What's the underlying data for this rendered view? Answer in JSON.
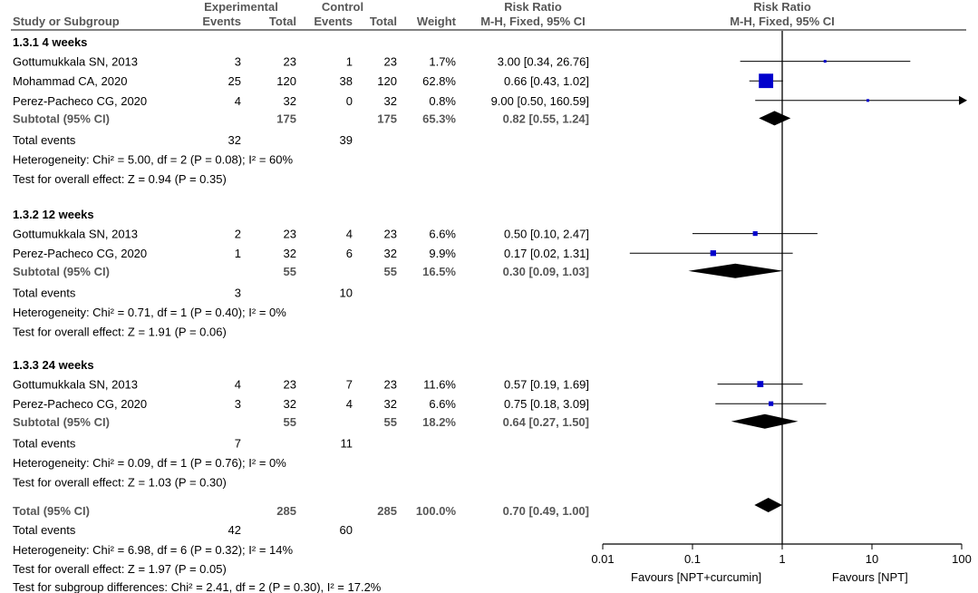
{
  "header": {
    "study_col": "Study or Subgroup",
    "exp_group": "Experimental",
    "ctrl_group": "Control",
    "events": "Events",
    "total": "Total",
    "weight": "Weight",
    "rr_title": "Risk Ratio",
    "rr_method": "M-H, Fixed, 95% CI",
    "plot_title": "Risk Ratio",
    "plot_method": "M-H, Fixed, 95% CI"
  },
  "axis": {
    "ticks": [
      "0.01",
      "0.1",
      "1",
      "10",
      "100"
    ],
    "left_label": "Favours [NPT+curcumin]",
    "right_label": "Favours [NPT]"
  },
  "colors": {
    "marker": "#0000cc",
    "diamond": "#000000",
    "subtotal_text": "#575757"
  },
  "chart_data": {
    "type": "forest",
    "scale": "log",
    "xlim": [
      0.01,
      100
    ],
    "reference_line": 1,
    "groups": [
      {
        "title": "1.3.1 4 weeks",
        "studies": [
          {
            "name": "Gottumukkala SN, 2013",
            "exp_events": "3",
            "exp_total": "23",
            "ctrl_events": "1",
            "ctrl_total": "23",
            "weight": "1.7%",
            "ci_text": "3.00 [0.34, 26.76]",
            "rr": 3.0,
            "lo": 0.34,
            "hi": 26.76
          },
          {
            "name": "Mohammad CA, 2020",
            "exp_events": "25",
            "exp_total": "120",
            "ctrl_events": "38",
            "ctrl_total": "120",
            "weight": "62.8%",
            "ci_text": "0.66 [0.43, 1.02]",
            "rr": 0.66,
            "lo": 0.43,
            "hi": 1.02
          },
          {
            "name": "Perez-Pacheco CG, 2020",
            "exp_events": "4",
            "exp_total": "32",
            "ctrl_events": "0",
            "ctrl_total": "32",
            "weight": "0.8%",
            "ci_text": "9.00 [0.50, 160.59]",
            "rr": 9.0,
            "lo": 0.5,
            "hi": 160.59
          }
        ],
        "subtotal": {
          "label": "Subtotal (95% CI)",
          "exp_total": "175",
          "ctrl_total": "175",
          "weight": "65.3%",
          "ci_text": "0.82 [0.55, 1.24]",
          "rr": 0.82,
          "lo": 0.55,
          "hi": 1.24
        },
        "events_label": "Total events",
        "exp_events": "32",
        "ctrl_events": "39",
        "heterogeneity": "Heterogeneity: Chi² = 5.00, df = 2 (P = 0.08); I² = 60%",
        "overall": "Test for overall effect: Z = 0.94 (P = 0.35)"
      },
      {
        "title": "1.3.2 12 weeks",
        "studies": [
          {
            "name": "Gottumukkala SN, 2013",
            "exp_events": "2",
            "exp_total": "23",
            "ctrl_events": "4",
            "ctrl_total": "23",
            "weight": "6.6%",
            "ci_text": "0.50 [0.10, 2.47]",
            "rr": 0.5,
            "lo": 0.1,
            "hi": 2.47
          },
          {
            "name": "Perez-Pacheco CG, 2020",
            "exp_events": "1",
            "exp_total": "32",
            "ctrl_events": "6",
            "ctrl_total": "32",
            "weight": "9.9%",
            "ci_text": "0.17 [0.02, 1.31]",
            "rr": 0.17,
            "lo": 0.02,
            "hi": 1.31
          }
        ],
        "subtotal": {
          "label": "Subtotal (95% CI)",
          "exp_total": "55",
          "ctrl_total": "55",
          "weight": "16.5%",
          "ci_text": "0.30 [0.09, 1.03]",
          "rr": 0.3,
          "lo": 0.09,
          "hi": 1.03
        },
        "events_label": "Total events",
        "exp_events": "3",
        "ctrl_events": "10",
        "heterogeneity": "Heterogeneity: Chi² = 0.71, df = 1 (P = 0.40); I² = 0%",
        "overall": "Test for overall effect: Z = 1.91 (P = 0.06)"
      },
      {
        "title": "1.3.3 24 weeks",
        "studies": [
          {
            "name": "Gottumukkala SN, 2013",
            "exp_events": "4",
            "exp_total": "23",
            "ctrl_events": "7",
            "ctrl_total": "23",
            "weight": "11.6%",
            "ci_text": "0.57 [0.19, 1.69]",
            "rr": 0.57,
            "lo": 0.19,
            "hi": 1.69
          },
          {
            "name": "Perez-Pacheco CG, 2020",
            "exp_events": "3",
            "exp_total": "32",
            "ctrl_events": "4",
            "ctrl_total": "32",
            "weight": "6.6%",
            "ci_text": "0.75 [0.18, 3.09]",
            "rr": 0.75,
            "lo": 0.18,
            "hi": 3.09
          }
        ],
        "subtotal": {
          "label": "Subtotal (95% CI)",
          "exp_total": "55",
          "ctrl_total": "55",
          "weight": "18.2%",
          "ci_text": "0.64 [0.27, 1.50]",
          "rr": 0.64,
          "lo": 0.27,
          "hi": 1.5
        },
        "events_label": "Total events",
        "exp_events": "7",
        "ctrl_events": "11",
        "heterogeneity": "Heterogeneity: Chi² = 0.09, df = 1 (P = 0.76); I² = 0%",
        "overall": "Test for overall effect: Z = 1.03 (P = 0.30)"
      }
    ],
    "total": {
      "label": "Total (95% CI)",
      "exp_total": "285",
      "ctrl_total": "285",
      "weight": "100.0%",
      "ci_text": "0.70 [0.49, 1.00]",
      "rr": 0.7,
      "lo": 0.49,
      "hi": 1.0,
      "events_label": "Total events",
      "exp_events": "42",
      "ctrl_events": "60",
      "heterogeneity": "Heterogeneity: Chi² = 6.98, df = 6 (P = 0.32); I² = 14%",
      "overall": "Test for overall effect: Z = 1.97 (P = 0.05)",
      "subgroup": "Test for subgroup differences: Chi² = 2.41, df = 2 (P = 0.30), I² = 17.2%"
    }
  }
}
